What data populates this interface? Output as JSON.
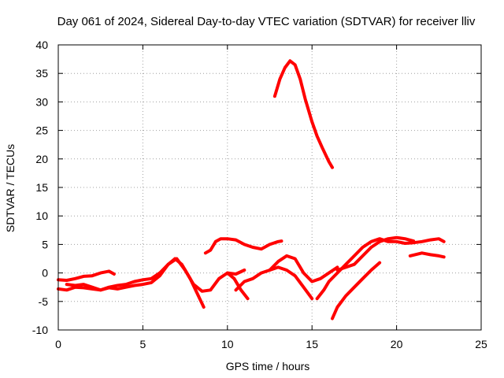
{
  "chart_data": {
    "type": "scatter",
    "title": "Day 061 of 2024, Sidereal Day-to-day VTEC variation (SDTVAR) for receiver lliv",
    "xlabel": "GPS time / hours",
    "ylabel": "SDTVAR / TECUs",
    "xlim": [
      0,
      25
    ],
    "ylim": [
      -10,
      40
    ],
    "xticks": [
      0,
      5,
      10,
      15,
      20,
      25
    ],
    "yticks": [
      -10,
      -5,
      0,
      5,
      10,
      15,
      20,
      25,
      30,
      35,
      40
    ],
    "grid": true,
    "color": "#ff0000",
    "series": [
      {
        "name": "arc-1",
        "x": [
          0,
          0.5,
          1,
          1.5,
          2,
          2.5,
          3,
          3.3
        ],
        "y": [
          -1.2,
          -1.3,
          -1,
          -0.6,
          -0.5,
          0,
          0.3,
          -0.2
        ]
      },
      {
        "name": "arc-2",
        "x": [
          0,
          0.5,
          1,
          1.5,
          2,
          2.5,
          3,
          3.5,
          4,
          4.5,
          5,
          5.5,
          6,
          6.5,
          6.9,
          7.3,
          7.8,
          8.2,
          8.6
        ],
        "y": [
          -2.8,
          -3,
          -2.5,
          -2.6,
          -2.8,
          -3,
          -2.6,
          -2.8,
          -2.5,
          -2.2,
          -2,
          -1.7,
          -0.5,
          1.5,
          2.5,
          1.5,
          -1,
          -3.5,
          -6
        ]
      },
      {
        "name": "arc-3",
        "x": [
          0.5,
          1,
          1.5,
          2,
          2.5,
          3,
          3.5,
          4,
          4.5,
          5,
          5.5,
          6,
          6.5,
          7,
          7.5,
          8,
          8.5,
          9,
          9.5,
          10,
          10.5,
          11
        ],
        "y": [
          -2,
          -2.2,
          -2,
          -2.5,
          -3,
          -2.5,
          -2.2,
          -2,
          -1.5,
          -1.2,
          -1,
          0,
          1.5,
          2.5,
          0.5,
          -2,
          -3.2,
          -3,
          -1,
          0,
          -0.2,
          0.5
        ]
      },
      {
        "name": "arc-4",
        "x": [
          8.7,
          9,
          9.3,
          9.6,
          10,
          10.5,
          11,
          11.5,
          12,
          12.5,
          13,
          13.2
        ],
        "y": [
          3.5,
          4,
          5.5,
          6,
          6,
          5.8,
          5,
          4.5,
          4.2,
          5,
          5.5,
          5.6
        ]
      },
      {
        "name": "arc-5",
        "x": [
          10,
          10.4,
          10.8,
          11.2
        ],
        "y": [
          0,
          -1,
          -3,
          -4.5
        ]
      },
      {
        "name": "arc-6",
        "x": [
          10.5,
          11,
          11.5,
          12,
          12.5,
          13,
          13.5,
          14,
          14.5,
          15
        ],
        "y": [
          -3,
          -1.5,
          -1,
          0,
          0.5,
          1,
          0.5,
          -0.5,
          -2.5,
          -4.5
        ]
      },
      {
        "name": "arc-7",
        "x": [
          12.5,
          13,
          13.5,
          14,
          14.5,
          15,
          15.5,
          16,
          16.5
        ],
        "y": [
          0.5,
          2,
          3,
          2.5,
          0,
          -1.5,
          -1,
          0,
          1
        ]
      },
      {
        "name": "arc-8",
        "x": [
          12.8,
          13.1,
          13.4,
          13.7,
          14,
          14.3,
          14.6,
          15,
          15.3,
          15.6,
          16,
          16.2
        ],
        "y": [
          31,
          34,
          36,
          37.2,
          36.5,
          34,
          30.5,
          26.5,
          24,
          22,
          19.5,
          18.5
        ]
      },
      {
        "name": "arc-9",
        "x": [
          15.3,
          15.7,
          16,
          16.5,
          17,
          17.5,
          18,
          18.5,
          19,
          19.5,
          20,
          20.5,
          21,
          21.5,
          22,
          22.5,
          22.8
        ],
        "y": [
          -4.5,
          -3,
          -1.5,
          0,
          1.5,
          3,
          4.5,
          5.5,
          6,
          5.5,
          5.5,
          5.2,
          5.3,
          5.5,
          5.8,
          6,
          5.5
        ]
      },
      {
        "name": "arc-10",
        "x": [
          16.5,
          17,
          17.5,
          18,
          18.5,
          19,
          19.5,
          20,
          20.5,
          21
        ],
        "y": [
          0.5,
          1,
          1.5,
          3,
          4.5,
          5.5,
          6,
          6.2,
          6,
          5.6
        ]
      },
      {
        "name": "arc-11",
        "x": [
          16.2,
          16.5,
          17,
          17.5,
          18,
          18.5,
          19
        ],
        "y": [
          -8,
          -6,
          -4,
          -2.5,
          -1,
          0.5,
          1.8
        ]
      },
      {
        "name": "arc-12",
        "x": [
          20.8,
          21.5,
          22,
          22.5,
          22.8
        ],
        "y": [
          3,
          3.5,
          3.2,
          3,
          2.8
        ]
      }
    ]
  }
}
